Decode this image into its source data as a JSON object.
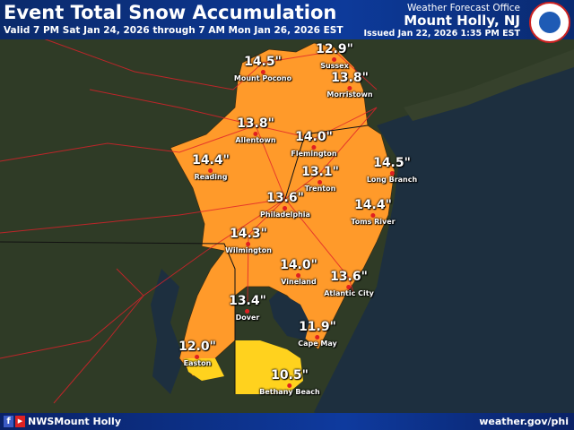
{
  "header": {
    "title": "Event Total Snow Accumulation",
    "valid": "Valid 7 PM Sat Jan 24, 2026 through 7 AM Mon Jan 26, 2026 EST",
    "office": "Weather Forecast Office",
    "location": "Mount Holly, NJ",
    "issued": "Issued Jan 22, 2026 1:35 PM EST",
    "logo_text": "NATIONAL WEATHER SERVICE"
  },
  "footer": {
    "facebook_icon": "f",
    "youtube_icon": "▶",
    "handle": "NWSMount Holly",
    "site": "weather.gov/phi"
  },
  "colors": {
    "accumulation_high": "#ff9a2a",
    "accumulation_low": "#ffd21e",
    "land": "#2e3a24",
    "ocean": "#1d2f3f",
    "roads": "#e0202a"
  },
  "points": [
    {
      "value": "14.5\"",
      "name": "Mount Pocono"
    },
    {
      "value": "12.9\"",
      "name": "Sussex"
    },
    {
      "value": "13.8\"",
      "name": "Morristown"
    },
    {
      "value": "13.8\"",
      "name": "Allentown"
    },
    {
      "value": "14.0\"",
      "name": "Flemington"
    },
    {
      "value": "14.4\"",
      "name": "Reading"
    },
    {
      "value": "13.1\"",
      "name": "Trenton"
    },
    {
      "value": "14.5\"",
      "name": "Long Branch"
    },
    {
      "value": "13.6\"",
      "name": "Philadelphia"
    },
    {
      "value": "14.4\"",
      "name": "Toms River"
    },
    {
      "value": "14.3\"",
      "name": "Wilmington"
    },
    {
      "value": "14.0\"",
      "name": "Vineland"
    },
    {
      "value": "13.6\"",
      "name": "Atlantic City"
    },
    {
      "value": "13.4\"",
      "name": "Dover"
    },
    {
      "value": "11.9\"",
      "name": "Cape May"
    },
    {
      "value": "12.0\"",
      "name": "Easton"
    },
    {
      "value": "10.5\"",
      "name": "Bethany Beach"
    }
  ]
}
